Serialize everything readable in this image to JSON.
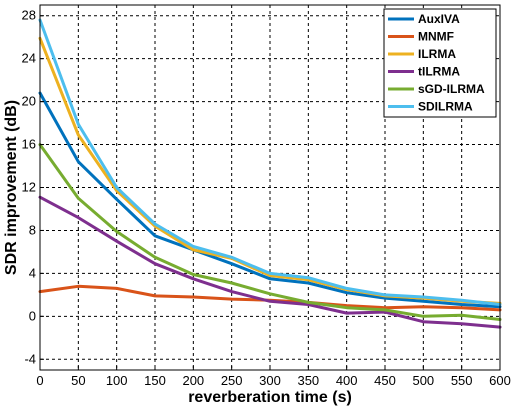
{
  "chart_data": {
    "type": "line",
    "xlabel": "reverberation time (s)",
    "ylabel": "SDR improvement (dB)",
    "xlim": [
      0,
      600
    ],
    "ylim": [
      -5,
      29
    ],
    "x_ticks": [
      0,
      50,
      100,
      150,
      200,
      250,
      300,
      350,
      400,
      450,
      500,
      550,
      600
    ],
    "y_ticks": [
      -4,
      0,
      4,
      8,
      12,
      16,
      20,
      24,
      28
    ],
    "grid": "on (dashed)",
    "legend_position": "top-right",
    "x": [
      0,
      50,
      100,
      150,
      200,
      250,
      300,
      350,
      400,
      450,
      500,
      550,
      600
    ],
    "series": [
      {
        "name": "AuxIVA",
        "color": "#0072BD",
        "values": [
          20.8,
          14.4,
          10.9,
          7.5,
          6.2,
          4.9,
          3.5,
          3.1,
          2.2,
          1.7,
          1.4,
          1.1,
          0.9
        ]
      },
      {
        "name": "MNMF",
        "color": "#D95319",
        "values": [
          2.3,
          2.8,
          2.6,
          1.9,
          1.8,
          1.6,
          1.5,
          1.3,
          1.0,
          0.8,
          0.9,
          0.8,
          0.6
        ]
      },
      {
        "name": "ILRMA",
        "color": "#EDB120",
        "values": [
          25.9,
          16.9,
          11.7,
          8.4,
          6.2,
          5.4,
          3.8,
          3.4,
          2.5,
          1.9,
          1.7,
          1.4,
          1.2
        ]
      },
      {
        "name": "tILRMA",
        "color": "#7E2F8E",
        "values": [
          11.1,
          9.2,
          7.0,
          4.9,
          3.5,
          2.3,
          1.4,
          1.1,
          0.3,
          0.4,
          -0.5,
          -0.7,
          -1.0
        ]
      },
      {
        "name": "sGD-ILRMA",
        "color": "#77AC30",
        "values": [
          16.0,
          11.0,
          7.9,
          5.5,
          3.9,
          3.1,
          2.1,
          1.3,
          0.8,
          0.6,
          0.0,
          0.1,
          -0.3
        ]
      },
      {
        "name": "SDILRMA",
        "color": "#4DBEEE",
        "values": [
          27.6,
          17.9,
          12.0,
          8.6,
          6.5,
          5.5,
          4.0,
          3.6,
          2.6,
          2.0,
          1.8,
          1.5,
          1.1
        ]
      }
    ]
  }
}
